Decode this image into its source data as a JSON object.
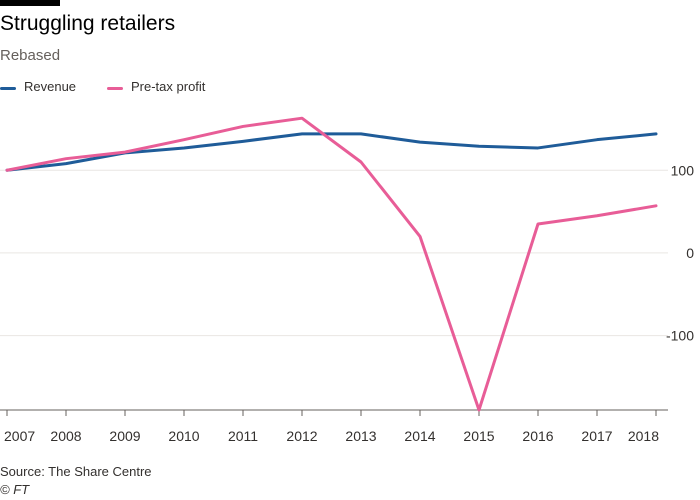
{
  "header": {
    "title": "Struggling retailers",
    "subtitle": "Rebased"
  },
  "footer": {
    "source": "Source: The Share Centre",
    "credit": "© FT"
  },
  "colors": {
    "revenue": "#1f5c99",
    "profit": "#e85d97",
    "grid": "#e9e6e3",
    "axis": "#66605c"
  },
  "chart_data": {
    "type": "line",
    "title": "Struggling retailers",
    "subtitle": "Rebased",
    "xlabel": "",
    "ylabel": "",
    "x": [
      "2007",
      "2008",
      "2009",
      "2010",
      "2011",
      "2012",
      "2013",
      "2014",
      "2015",
      "2016",
      "2017",
      "2018"
    ],
    "x_numeric": [
      2007,
      2008,
      2009,
      2010,
      2011,
      2012,
      2013,
      2014,
      2015,
      2016,
      2017,
      2018
    ],
    "xlim": [
      2007,
      2018
    ],
    "ylim": [
      -190,
      185
    ],
    "yticks": [
      100,
      0,
      -100
    ],
    "grid": true,
    "legend_position": "top-left",
    "series": [
      {
        "name": "Revenue",
        "color": "#1f5c99",
        "values": [
          100,
          108,
          121,
          127,
          135,
          144,
          144,
          134,
          129,
          127,
          137,
          144
        ]
      },
      {
        "name": "Pre-tax profit",
        "color": "#e85d97",
        "values": [
          100,
          114,
          122,
          137,
          153,
          163,
          110,
          20,
          -190,
          35,
          45,
          57
        ]
      }
    ]
  }
}
